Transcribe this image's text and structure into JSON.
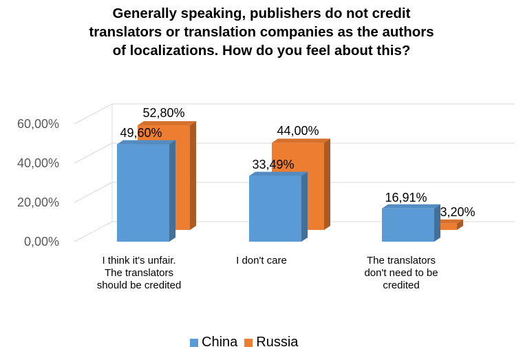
{
  "title_lines": [
    "Generally speaking, publishers do not credit",
    "translators or translation companies as the authors",
    "of localizations. How do you feel about this?"
  ],
  "chart_data": {
    "type": "bar",
    "style": "3d-clustered-column",
    "title": "Generally speaking, publishers do not credit translators or translation companies as the authors of localizations. How do you feel about this?",
    "categories": [
      [
        "I think it's unfair.",
        "The translators",
        "should be credited"
      ],
      [
        "I don't care"
      ],
      [
        "The translators",
        "don't need to be",
        "credited"
      ]
    ],
    "series": [
      {
        "name": "China",
        "color": "#5b9bd5",
        "values": [
          49.6,
          33.49,
          16.91
        ],
        "labels": [
          "49,60%",
          "33,49%",
          "16,91%"
        ]
      },
      {
        "name": "Russia",
        "color": "#ed7d31",
        "values": [
          52.8,
          44.0,
          3.2
        ],
        "labels": [
          "52,80%",
          "44,00%",
          "3,20%"
        ]
      }
    ],
    "ylim": [
      0,
      60
    ],
    "yticks": [
      0,
      20,
      40,
      60
    ],
    "ytick_labels": [
      "0,00%",
      "20,00%",
      "40,00%",
      "60,00%"
    ],
    "grid": true,
    "legend_position": "bottom"
  }
}
